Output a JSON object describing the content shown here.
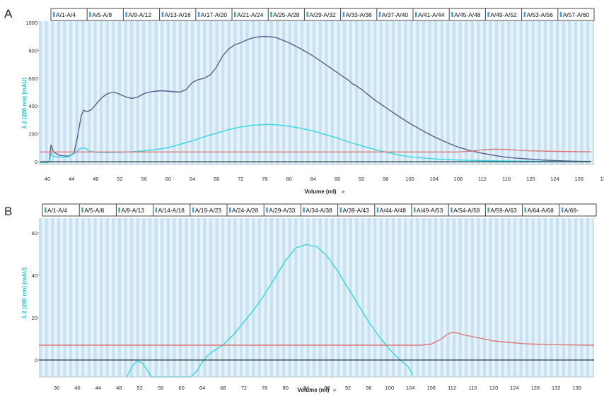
{
  "panels": [
    {
      "panel_label": "A",
      "fraction_labels": [
        "A/1-A/4",
        "A/5-A/8",
        "A/9-A/12",
        "A/13-A/16",
        "A/17-A/20",
        "A/21-A/24",
        "A/25-A/28",
        "A/29-A/32",
        "A/33-A/36",
        "A/37-A/40",
        "A/41-A/44",
        "A/45-A/48",
        "A/49-A/52",
        "A/53-A/56",
        "A/57-A/60"
      ],
      "ylabel": "λ 2 (280 nm) (mAU)",
      "xlabel": "Volume (ml)",
      "xlabel_arrow": "►",
      "y_ticks": [
        "0",
        "200",
        "400",
        "600",
        "800",
        "1000"
      ],
      "x_ticks": [
        "40",
        "44",
        "48",
        "52",
        "56",
        "60",
        "64",
        "68",
        "72",
        "76",
        "80",
        "84",
        "88",
        "92",
        "96",
        "100",
        "104",
        "108",
        "112",
        "116",
        "120",
        "124",
        "128",
        "13"
      ]
    },
    {
      "panel_label": "B",
      "fraction_labels": [
        "A/1-A/4",
        "A/5-A/8",
        "A/9-A/13",
        "A/14-A/18",
        "A/19-A/23",
        "A/24-A/28",
        "A/29-A/33",
        "A/34-A/38",
        "A/39-A/43",
        "A/44-A/48",
        "A/49-A/53",
        "A/54-A/58",
        "A/59-A/63",
        "A/64-A/68",
        "A/69-"
      ],
      "ylabel": "λ 2 (280 nm) (mAU)",
      "xlabel": "Volume (ml)",
      "xlabel_arrow": "►",
      "y_ticks": [
        "0",
        "20",
        "40",
        "60"
      ],
      "x_ticks": [
        "36",
        "40",
        "44",
        "48",
        "52",
        "56",
        "60",
        "64",
        "68",
        "72",
        "76",
        "80",
        "84",
        "88",
        "92",
        "96",
        "100",
        "104",
        "108",
        "112",
        "116",
        "120",
        "124",
        "128",
        "132",
        "136"
      ]
    }
  ],
  "colors": {
    "band_dark": "#c9e2f2",
    "band_light": "#e7f3fb",
    "uv_280": "#33d6e6",
    "uv_other": "#5a5d8e",
    "conductivity": "#dd7777",
    "baseline": "#2b3a3a",
    "axis_label": "#21c7d8"
  },
  "chart_data": [
    {
      "type": "line",
      "panel": "A",
      "xlabel": "Volume (ml)",
      "ylabel": "λ 2 (280 nm) (mAU)",
      "xlim": [
        38.6,
        130.5
      ],
      "ylim": [
        -20,
        1010
      ],
      "grid": true,
      "series": [
        {
          "color": "#5a5d8e",
          "x": [
            38.8,
            40.3,
            40.6,
            41.0,
            42.0,
            43.5,
            44.4,
            45.0,
            45.6,
            46.0,
            46.5,
            47.2,
            48.0,
            49.0,
            50.0,
            51.0,
            52.0,
            53.0,
            54.0,
            55.0,
            56.0,
            57.5,
            59.0,
            60.5,
            62.0,
            63.0,
            64.0,
            65.0,
            66.0,
            67.0,
            68.0,
            69.0,
            70.0,
            71.0,
            72.0,
            73.0,
            74.0,
            75.0,
            76.0,
            77.0,
            78.0,
            80.0,
            82.0,
            84.0,
            86.0,
            88.0,
            90.0,
            90.5,
            91.0,
            92.0,
            94.0,
            96.0,
            98.0,
            100.0,
            102.0,
            104.0,
            106.0,
            108.0,
            110.0,
            112.0,
            114.0,
            116.0,
            118.0,
            120.0,
            122.0,
            124.0,
            126.0,
            128.0,
            130.0
          ],
          "y": [
            -5,
            -5,
            120,
            70,
            45,
            40,
            60,
            180,
            330,
            370,
            360,
            370,
            410,
            460,
            490,
            500,
            485,
            465,
            455,
            465,
            490,
            505,
            510,
            505,
            500,
            520,
            570,
            590,
            600,
            625,
            680,
            760,
            810,
            840,
            855,
            875,
            890,
            898,
            900,
            898,
            890,
            855,
            810,
            760,
            700,
            640,
            580,
            560,
            550,
            520,
            450,
            390,
            330,
            275,
            225,
            180,
            140,
            105,
            80,
            60,
            45,
            32,
            24,
            18,
            12,
            8,
            5,
            3,
            2
          ]
        },
        {
          "color": "#33d6e6",
          "x": [
            38.8,
            40.3,
            40.6,
            41.0,
            42.0,
            43.5,
            44.5,
            45.5,
            46.2,
            47.0,
            48.0,
            50.0,
            52.0,
            54.0,
            56.0,
            58.0,
            60.0,
            62.0,
            64.0,
            66.0,
            68.0,
            70.0,
            72.0,
            74.0,
            76.0,
            77.0,
            78.0,
            80.0,
            82.0,
            84.0,
            86.0,
            88.0,
            90.0,
            92.0,
            94.0,
            96.0,
            98.0,
            100.0,
            104.0,
            108.0,
            112.0,
            116.0,
            120.0,
            124.0,
            128.0,
            130.0
          ],
          "y": [
            -5,
            -5,
            60,
            40,
            30,
            35,
            60,
            95,
            100,
            75,
            68,
            66,
            68,
            72,
            78,
            88,
            100,
            125,
            150,
            180,
            205,
            230,
            250,
            262,
            267,
            267,
            265,
            255,
            240,
            220,
            195,
            170,
            140,
            115,
            90,
            70,
            50,
            35,
            20,
            12,
            8,
            5,
            3,
            2,
            1,
            0
          ]
        },
        {
          "color": "#dd7777",
          "x": [
            38.8,
            42.0,
            50.0,
            60.0,
            70.0,
            80.0,
            90.0,
            100.0,
            108.0,
            110.0,
            112.0,
            114.0,
            116.0,
            118.0,
            120.0,
            124.0,
            128.0,
            130.0
          ],
          "y": [
            70,
            70,
            70,
            70,
            70,
            70,
            70,
            70,
            70,
            75,
            85,
            90,
            88,
            82,
            78,
            74,
            72,
            72
          ]
        },
        {
          "color": "#2b3a3a",
          "x": [
            38.8,
            130.0
          ],
          "y": [
            0,
            0
          ]
        }
      ]
    },
    {
      "type": "line",
      "panel": "B",
      "xlabel": "Volume (ml)",
      "ylabel": "λ 2 (280 nm) (mAU)",
      "xlim": [
        32.6,
        139.3
      ],
      "ylim": [
        -8,
        67
      ],
      "grid": true,
      "series": [
        {
          "color": "#33d6e6",
          "x": [
            49.5,
            50.5,
            51.5,
            52.5,
            53.5,
            54.2,
            61.8,
            63.0,
            64.0,
            65.0,
            66.0,
            68.0,
            70.0,
            72.0,
            74.0,
            76.0,
            78.0,
            80.0,
            82.0,
            84.0,
            86.0,
            88.0,
            90.0,
            92.0,
            94.0,
            96.0,
            98.0,
            100.0,
            102.0,
            103.5,
            104.5
          ],
          "y": [
            -8,
            -3,
            -0.5,
            -1.5,
            -5,
            -8,
            -8,
            -5,
            -1,
            2,
            4,
            7,
            12,
            18,
            24,
            31,
            39,
            47,
            53,
            54.5,
            53.5,
            49,
            42,
            34,
            26,
            18,
            11,
            5,
            0,
            -3,
            -7
          ]
        },
        {
          "color": "#dd7777",
          "x": [
            32.6,
            40.0,
            50.0,
            60.0,
            70.0,
            80.0,
            90.0,
            100.0,
            106.0,
            108.0,
            110.0,
            111.0,
            112.0,
            113.0,
            114.0,
            116.0,
            118.0,
            120.0,
            122.0,
            126.0,
            130.0,
            135.0,
            139.3
          ],
          "y": [
            7,
            7,
            7,
            7,
            7,
            7,
            7,
            7,
            7,
            7.5,
            10,
            12,
            13,
            12.8,
            12,
            11,
            10,
            9,
            8.5,
            7.7,
            7.3,
            7.1,
            7
          ]
        },
        {
          "color": "#2b3a3a",
          "x": [
            32.6,
            139.3
          ],
          "y": [
            0,
            0
          ]
        }
      ]
    }
  ]
}
